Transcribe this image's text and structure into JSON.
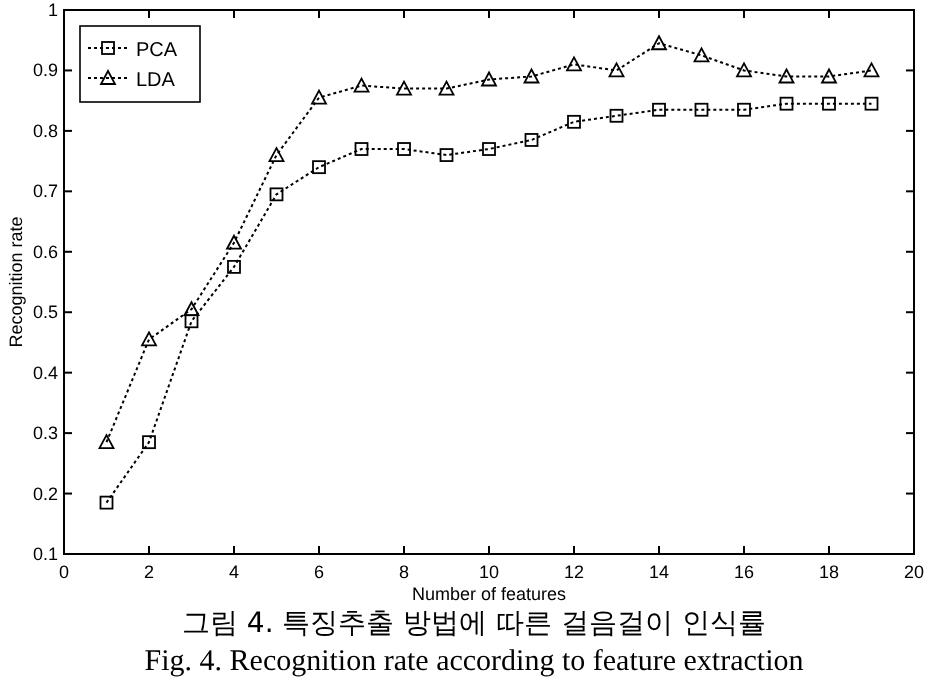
{
  "chart_data": {
    "type": "line",
    "xlabel": "Number of features",
    "ylabel": "Recognition rate",
    "annotations": [
      "그림 4. 특징추출 방법에 따른 걸음걸이 인식률",
      "Fig. 4. Recognition rate according to feature extraction"
    ],
    "x": [
      1,
      2,
      3,
      4,
      5,
      6,
      7,
      8,
      9,
      10,
      11,
      12,
      13,
      14,
      15,
      16,
      17,
      18,
      19
    ],
    "series": [
      {
        "name": "PCA",
        "color": "#000000",
        "marker": "square",
        "values": [
          0.185,
          0.285,
          0.485,
          0.575,
          0.695,
          0.74,
          0.77,
          0.77,
          0.76,
          0.77,
          0.785,
          0.815,
          0.825,
          0.835,
          0.835,
          0.835,
          0.845,
          0.845,
          0.845
        ]
      },
      {
        "name": "LDA",
        "color": "#000000",
        "marker": "triangle",
        "values": [
          0.285,
          0.455,
          0.505,
          0.615,
          0.76,
          0.855,
          0.875,
          0.87,
          0.87,
          0.885,
          0.89,
          0.91,
          0.9,
          0.945,
          0.925,
          0.9,
          0.89,
          0.89,
          0.9
        ]
      }
    ],
    "xlim": [
      0,
      20
    ],
    "xticks": [
      0,
      2,
      4,
      6,
      8,
      10,
      12,
      14,
      16,
      18,
      20
    ],
    "ylim": [
      0.1,
      1
    ],
    "yticks": [
      0.1,
      0.2,
      0.3,
      0.4,
      0.5,
      0.6,
      0.7,
      0.8,
      0.9,
      1
    ],
    "line_style": "dotted",
    "grid": false,
    "legend": "top left"
  }
}
